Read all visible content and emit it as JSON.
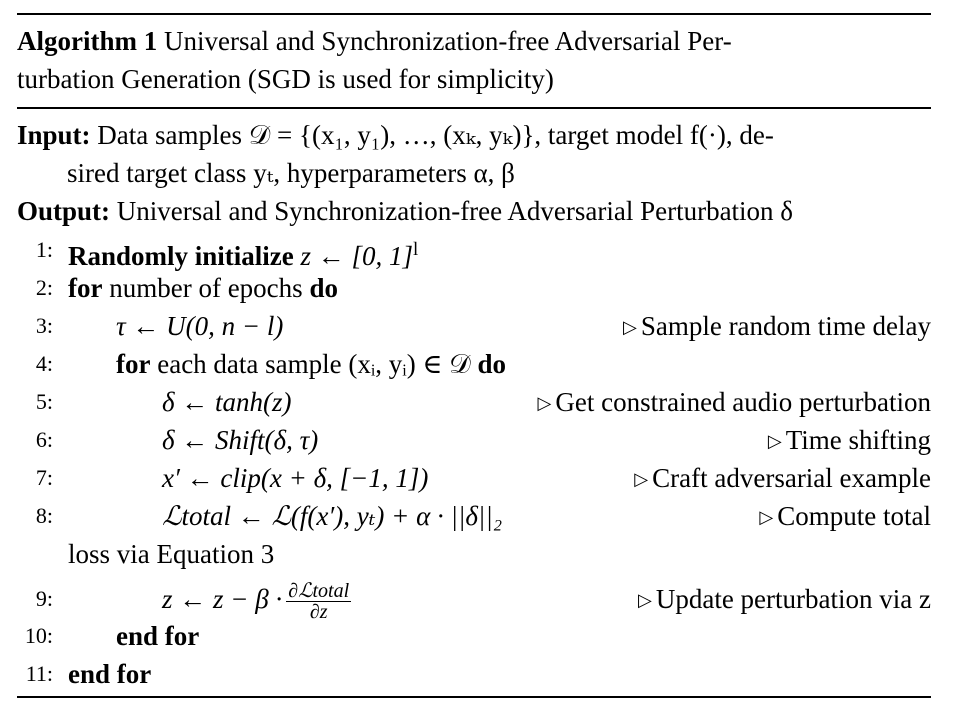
{
  "caption": {
    "label": "Algorithm 1",
    "text_line1": " Universal and Synchronization-free Adversarial Per-",
    "text_line2": "turbation Generation (SGD is used for simplicity)"
  },
  "input": {
    "label": "Input:",
    "line1": " Data samples 𝒟 = {(x₁, y₁), …, (xₖ, yₖ)}, target model f(·), de-",
    "line2": "sired target class yₜ, hyperparameters α, β"
  },
  "output": {
    "label": "Output:",
    "text": " Universal and Synchronization-free Adversarial Perturbation δ"
  },
  "lines": [
    {
      "num": "1:",
      "kw": "Randomly initialize",
      "rest": " z ← [0, 1]",
      "sup": "l",
      "comment": ""
    },
    {
      "num": "2:",
      "kw": "for",
      "rest": " number of epochs ",
      "kw2": "do",
      "comment": ""
    },
    {
      "num": "3:",
      "code": "τ ← U(0, n − l)",
      "comment": "Sample random time delay"
    },
    {
      "num": "4:",
      "kw": "for",
      "rest": " each data sample (xᵢ, yᵢ) ∈ 𝒟 ",
      "kw2": "do",
      "comment": ""
    },
    {
      "num": "5:",
      "code": "δ ← tanh(z)",
      "comment": "Get constrained audio perturbation"
    },
    {
      "num": "6:",
      "code": "δ ← Shift(δ, τ)",
      "comment": "Time shifting"
    },
    {
      "num": "7:",
      "code": "x′ ← clip(x + δ, [−1, 1])",
      "comment": "Craft adversarial example"
    },
    {
      "num": "8:",
      "code": "ℒtotal ← ℒ(f(x′), yₜ) + α · ||δ||₂",
      "comment": "Compute total",
      "cont": "loss via Equation 3"
    },
    {
      "num": "9:",
      "code": "z ← z − β ·",
      "frac_num": "∂ℒtotal",
      "frac_den": "∂z",
      "comment": "Update perturbation via z"
    },
    {
      "num": "10:",
      "kw": "end for",
      "comment": ""
    },
    {
      "num": "11:",
      "kw": "end for",
      "comment": ""
    }
  ]
}
